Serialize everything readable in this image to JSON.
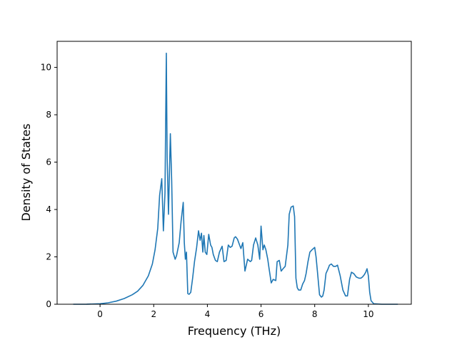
{
  "chart_data": {
    "type": "line",
    "title": "",
    "xlabel": "Frequency (THz)",
    "ylabel": "Density of States",
    "xlim": [
      -1.6,
      11.6
    ],
    "ylim": [
      0,
      11.1
    ],
    "xticks": [
      0,
      2,
      4,
      6,
      8,
      10
    ],
    "yticks": [
      0,
      2,
      4,
      6,
      8,
      10
    ],
    "grid": false,
    "legend": "none",
    "line_color": "#1f77b4",
    "series": [
      {
        "x": [
          -1.0,
          -0.5,
          0.0,
          0.3,
          0.6,
          0.9,
          1.2,
          1.4,
          1.6,
          1.8,
          1.95,
          2.05,
          2.15,
          2.22,
          2.3,
          2.36,
          2.42,
          2.47,
          2.5,
          2.55,
          2.62,
          2.67,
          2.72,
          2.8,
          2.85,
          2.95,
          3.02,
          3.1,
          3.14,
          3.18,
          3.22,
          3.27,
          3.32,
          3.38,
          3.45,
          3.52,
          3.6,
          3.67,
          3.73,
          3.78,
          3.83,
          3.87,
          3.92,
          3.98,
          4.05,
          4.12,
          4.17,
          4.22,
          4.3,
          4.37,
          4.45,
          4.55,
          4.62,
          4.7,
          4.78,
          4.85,
          4.92,
          5.0,
          5.05,
          5.12,
          5.2,
          5.25,
          5.32,
          5.4,
          5.5,
          5.55,
          5.6,
          5.65,
          5.72,
          5.8,
          5.88,
          5.95,
          6.0,
          6.07,
          6.12,
          6.18,
          6.25,
          6.3,
          6.38,
          6.45,
          6.55,
          6.6,
          6.68,
          6.75,
          6.82,
          6.9,
          7.0,
          7.05,
          7.12,
          7.2,
          7.25,
          7.3,
          7.35,
          7.4,
          7.48,
          7.55,
          7.62,
          7.68,
          7.75,
          7.82,
          7.9,
          8.0,
          8.05,
          8.1,
          8.18,
          8.25,
          8.3,
          8.35,
          8.42,
          8.5,
          8.55,
          8.62,
          8.7,
          8.78,
          8.85,
          8.95,
          9.05,
          9.15,
          9.22,
          9.3,
          9.37,
          9.45,
          9.55,
          9.65,
          9.72,
          9.78,
          9.85,
          9.9,
          9.95,
          10.0,
          10.05,
          10.1,
          10.2,
          10.5,
          11.1
        ],
        "y": [
          0,
          0.002,
          0.02,
          0.06,
          0.13,
          0.24,
          0.4,
          0.55,
          0.8,
          1.2,
          1.7,
          2.3,
          3.2,
          4.6,
          5.3,
          3.1,
          4.7,
          10.6,
          6.2,
          3.8,
          7.2,
          5.2,
          2.2,
          1.9,
          2.05,
          2.6,
          3.5,
          4.3,
          2.6,
          1.9,
          2.2,
          0.45,
          0.42,
          0.5,
          1.1,
          1.8,
          2.4,
          3.1,
          2.7,
          3.0,
          2.2,
          2.9,
          2.2,
          2.1,
          2.95,
          2.5,
          2.4,
          2.1,
          1.85,
          1.8,
          2.2,
          2.45,
          1.8,
          1.85,
          2.5,
          2.4,
          2.45,
          2.8,
          2.85,
          2.75,
          2.5,
          2.35,
          2.6,
          1.4,
          1.9,
          1.85,
          1.8,
          1.85,
          2.5,
          2.8,
          2.5,
          1.9,
          3.3,
          2.3,
          2.5,
          2.3,
          1.9,
          1.5,
          0.9,
          1.05,
          1.0,
          1.8,
          1.85,
          1.4,
          1.5,
          1.6,
          2.5,
          3.8,
          4.1,
          4.15,
          3.7,
          1.1,
          0.7,
          0.6,
          0.6,
          0.85,
          1.0,
          1.3,
          1.8,
          2.2,
          2.3,
          2.4,
          2.0,
          1.4,
          0.4,
          0.3,
          0.35,
          0.6,
          1.3,
          1.5,
          1.65,
          1.7,
          1.6,
          1.6,
          1.65,
          1.2,
          0.6,
          0.35,
          0.35,
          1.05,
          1.35,
          1.3,
          1.15,
          1.1,
          1.1,
          1.15,
          1.25,
          1.35,
          1.5,
          1.2,
          0.5,
          0.15,
          0.02,
          0,
          0
        ]
      }
    ]
  }
}
